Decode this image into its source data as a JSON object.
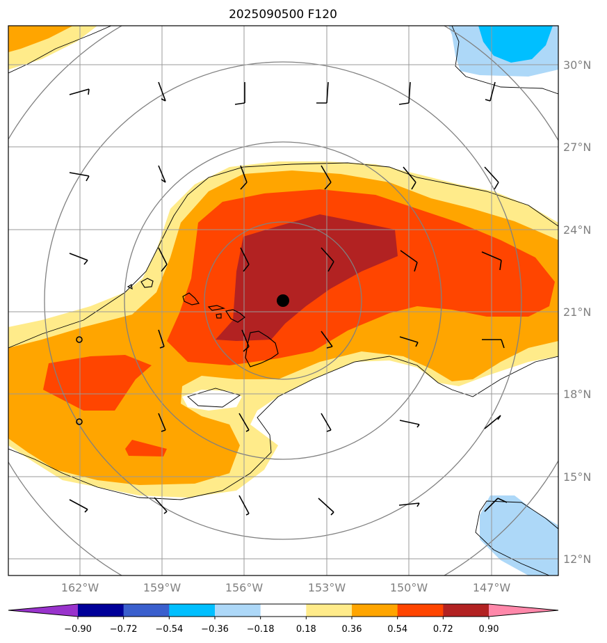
{
  "title": "2025090500 F120",
  "map": {
    "lat_labels": [
      "30°N",
      "27°N",
      "24°N",
      "21°N",
      "18°N",
      "15°N",
      "12°N"
    ],
    "lon_labels": [
      "162°W",
      "159°W",
      "156°W",
      "153°W",
      "150°W",
      "147°W"
    ],
    "storm_center": {
      "lon": "154.7°W",
      "lat": "21.4°N"
    }
  },
  "colorbar": {
    "tick_labels": [
      "−0.90",
      "−0.72",
      "−0.54",
      "−0.36",
      "−0.18",
      "0.18",
      "0.36",
      "0.54",
      "0.72",
      "0.90"
    ],
    "colors": [
      "#9933cc",
      "#000099",
      "#3a5fcd",
      "#00bfff",
      "#add8f8",
      "#ffffff",
      "#ffeb8a",
      "#ffa500",
      "#ff4500",
      "#b22222",
      "#ff88aa"
    ]
  }
}
